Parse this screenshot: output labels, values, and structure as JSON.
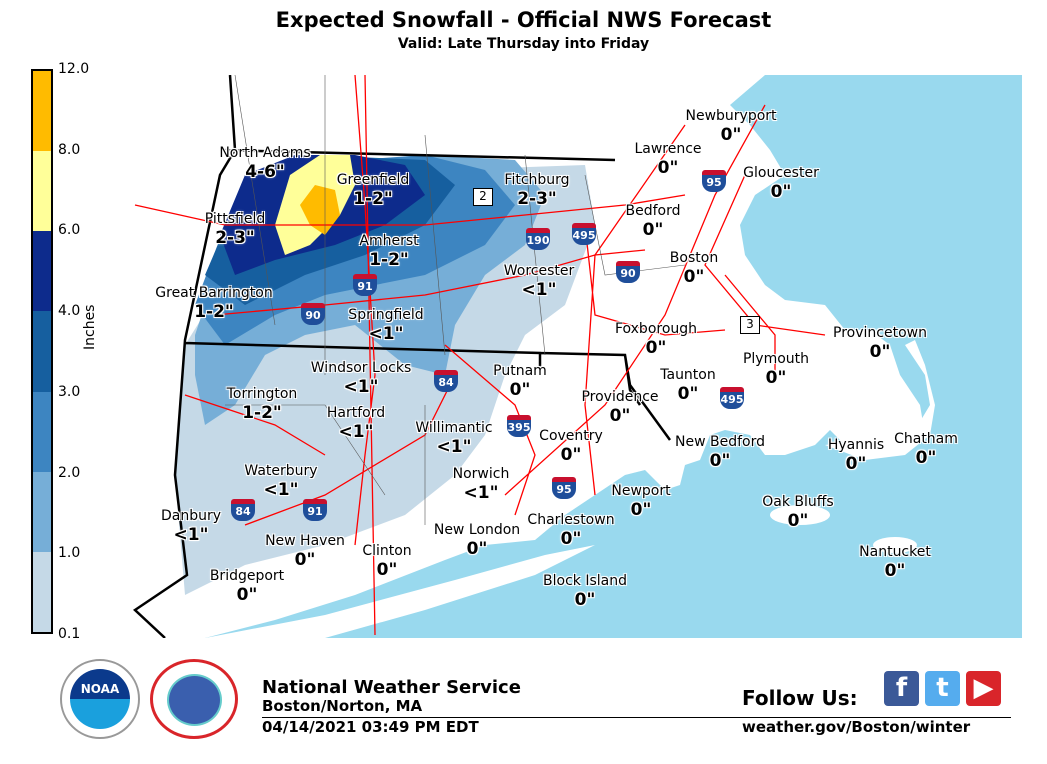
{
  "header": {
    "title": "Expected Snowfall - Official NWS Forecast",
    "subtitle": "Valid: Late Thursday into Friday"
  },
  "legend": {
    "axis_label": "Inches",
    "ticks": [
      "0.1",
      "1.0",
      "2.0",
      "3.0",
      "4.0",
      "6.0",
      "8.0",
      "12.0"
    ],
    "colors": [
      "#c5d9e7",
      "#76aed7",
      "#3d85c1",
      "#165f9f",
      "#0d2b8c",
      "#ffff99",
      "#ffbb00"
    ]
  },
  "colors": {
    "ocean": "#99d9ee",
    "land": "#ffffff",
    "roads": "#ff0000"
  },
  "locations": [
    {
      "city": "Newburyport",
      "amount": "0\""
    },
    {
      "city": "Lawrence",
      "amount": "0\""
    },
    {
      "city": "Gloucester",
      "amount": "0\""
    },
    {
      "city": "North Adams",
      "amount": "4-6\""
    },
    {
      "city": "Greenfield",
      "amount": "1-2\""
    },
    {
      "city": "Fitchburg",
      "amount": "2-3\""
    },
    {
      "city": "Pittsfield",
      "amount": "2-3\""
    },
    {
      "city": "Bedford",
      "amount": "0\""
    },
    {
      "city": "Amherst",
      "amount": "1-2\""
    },
    {
      "city": "Worcester",
      "amount": "<1\""
    },
    {
      "city": "Boston",
      "amount": "0\""
    },
    {
      "city": "Great Barrington",
      "amount": "1-2\""
    },
    {
      "city": "Springfield",
      "amount": "<1\""
    },
    {
      "city": "Foxborough",
      "amount": "0\""
    },
    {
      "city": "Provincetown",
      "amount": "0\""
    },
    {
      "city": "Plymouth",
      "amount": "0\""
    },
    {
      "city": "Windsor Locks",
      "amount": "<1\""
    },
    {
      "city": "Putnam",
      "amount": "0\""
    },
    {
      "city": "Taunton",
      "amount": "0\""
    },
    {
      "city": "Torrington",
      "amount": "1-2\""
    },
    {
      "city": "Providence",
      "amount": "0\""
    },
    {
      "city": "Hartford",
      "amount": "<1\""
    },
    {
      "city": "Willimantic",
      "amount": "<1\""
    },
    {
      "city": "Coventry",
      "amount": "0\""
    },
    {
      "city": "New Bedford",
      "amount": "0\""
    },
    {
      "city": "Hyannis",
      "amount": "0\""
    },
    {
      "city": "Chatham",
      "amount": "0\""
    },
    {
      "city": "Waterbury",
      "amount": "<1\""
    },
    {
      "city": "Norwich",
      "amount": "<1\""
    },
    {
      "city": "Newport",
      "amount": "0\""
    },
    {
      "city": "Oak Bluffs",
      "amount": "0\""
    },
    {
      "city": "Danbury",
      "amount": "<1\""
    },
    {
      "city": "Charlestown",
      "amount": "0\""
    },
    {
      "city": "New London",
      "amount": "0\""
    },
    {
      "city": "New Haven",
      "amount": "0\""
    },
    {
      "city": "Clinton",
      "amount": "0\""
    },
    {
      "city": "Nantucket",
      "amount": "0\""
    },
    {
      "city": "Bridgeport",
      "amount": "0\""
    },
    {
      "city": "Block Island",
      "amount": "0\""
    }
  ],
  "shields": [
    "95",
    "495",
    "495",
    "90",
    "90",
    "190",
    "91",
    "91",
    "84",
    "84",
    "395",
    "95",
    "2",
    "3"
  ],
  "footer": {
    "org": "National Weather Service",
    "office": "Boston/Norton, MA",
    "timestamp": "04/14/2021 03:49 PM EDT",
    "follow": "Follow Us:",
    "url": "weather.gov/Boston/winter",
    "noaa": "NOAA",
    "nws_ring": "NATIONAL WEATHER SERVICE",
    "social": [
      {
        "icon": "facebook-icon",
        "glyph": "f",
        "color": "#3b5998"
      },
      {
        "icon": "twitter-icon",
        "glyph": "t",
        "color": "#55acee"
      },
      {
        "icon": "youtube-icon",
        "glyph": "▶",
        "color": "#d9252a"
      }
    ]
  }
}
